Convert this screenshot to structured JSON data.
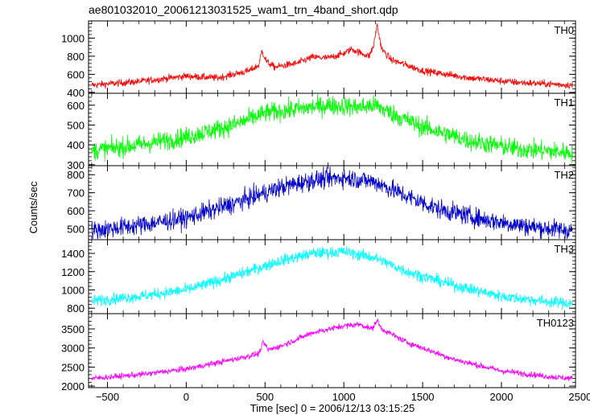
{
  "chart_data": {
    "type": "line",
    "title": "ae801032010_20061213031525_wam1_trn_4band_short.qdp",
    "xlabel": "Time [sec] 0 = 2006/12/13 03:15:25",
    "ylabel": "Counts/sec",
    "xlim": [
      -620,
      2470
    ],
    "x_ticks": [
      -500,
      0,
      500,
      1000,
      1500,
      2000,
      2500
    ],
    "x_tick_labels": [
      "−500",
      "0",
      "500",
      "1000",
      "1500",
      "2000",
      "2500"
    ],
    "grid": false,
    "panels": [
      {
        "name": "TH0",
        "color": "#ff0000",
        "ylim": [
          390,
          1190
        ],
        "y_ticks": [
          400,
          600,
          800,
          1000
        ],
        "y_tick_labels": [
          "400",
          "600",
          "800",
          "1000"
        ],
        "noise": 28,
        "envelope": [
          [
            -600,
            480
          ],
          [
            -300,
            520
          ],
          [
            0,
            580
          ],
          [
            200,
            560
          ],
          [
            400,
            640
          ],
          [
            460,
            700
          ],
          [
            480,
            860
          ],
          [
            510,
            740
          ],
          [
            560,
            680
          ],
          [
            700,
            720
          ],
          [
            800,
            790
          ],
          [
            900,
            780
          ],
          [
            1000,
            830
          ],
          [
            1050,
            880
          ],
          [
            1100,
            840
          ],
          [
            1160,
            800
          ],
          [
            1190,
            920
          ],
          [
            1210,
            1150
          ],
          [
            1240,
            880
          ],
          [
            1300,
            760
          ],
          [
            1500,
            640
          ],
          [
            1800,
            560
          ],
          [
            2100,
            510
          ],
          [
            2450,
            480
          ]
        ]
      },
      {
        "name": "TH1",
        "color": "#00ff00",
        "ylim": [
          295,
          660
        ],
        "y_ticks": [
          300,
          400,
          500,
          600
        ],
        "y_tick_labels": [
          "300",
          "400",
          "500",
          "600"
        ],
        "noise": 35,
        "envelope": [
          [
            -600,
            370
          ],
          [
            -300,
            400
          ],
          [
            0,
            440
          ],
          [
            300,
            500
          ],
          [
            500,
            560
          ],
          [
            700,
            580
          ],
          [
            900,
            600
          ],
          [
            1100,
            590
          ],
          [
            1200,
            600
          ],
          [
            1300,
            560
          ],
          [
            1500,
            490
          ],
          [
            1800,
            420
          ],
          [
            2100,
            380
          ],
          [
            2450,
            360
          ]
        ]
      },
      {
        "name": "TH2",
        "color": "#0000cc",
        "ylim": [
          440,
          850
        ],
        "y_ticks": [
          500,
          600,
          700,
          800
        ],
        "y_tick_labels": [
          "500",
          "600",
          "700",
          "800"
        ],
        "noise": 38,
        "envelope": [
          [
            -600,
            490
          ],
          [
            -300,
            520
          ],
          [
            0,
            560
          ],
          [
            300,
            640
          ],
          [
            600,
            730
          ],
          [
            800,
            770
          ],
          [
            1000,
            785
          ],
          [
            1200,
            760
          ],
          [
            1400,
            680
          ],
          [
            1600,
            610
          ],
          [
            1900,
            550
          ],
          [
            2200,
            510
          ],
          [
            2450,
            490
          ]
        ]
      },
      {
        "name": "TH3",
        "color": "#00ffff",
        "ylim": [
          740,
          1550
        ],
        "y_ticks": [
          800,
          1000,
          1200,
          1400
        ],
        "y_tick_labels": [
          "800",
          "1000",
          "1200",
          "1400"
        ],
        "noise": 45,
        "envelope": [
          [
            -600,
            880
          ],
          [
            -300,
            930
          ],
          [
            0,
            1000
          ],
          [
            300,
            1150
          ],
          [
            600,
            1320
          ],
          [
            800,
            1400
          ],
          [
            1000,
            1420
          ],
          [
            1200,
            1350
          ],
          [
            1400,
            1200
          ],
          [
            1700,
            1050
          ],
          [
            2000,
            930
          ],
          [
            2300,
            870
          ],
          [
            2450,
            850
          ]
        ]
      },
      {
        "name": "TH0123",
        "color": "#ff00ff",
        "ylim": [
          1960,
          3900
        ],
        "y_ticks": [
          2000,
          2500,
          3000,
          3500
        ],
        "y_tick_labels": [
          "2000",
          "2500",
          "3000",
          "3500"
        ],
        "noise": 55,
        "envelope": [
          [
            -600,
            2200
          ],
          [
            -300,
            2300
          ],
          [
            0,
            2450
          ],
          [
            300,
            2700
          ],
          [
            460,
            2850
          ],
          [
            490,
            3150
          ],
          [
            520,
            2950
          ],
          [
            600,
            3050
          ],
          [
            800,
            3400
          ],
          [
            1000,
            3580
          ],
          [
            1100,
            3620
          ],
          [
            1180,
            3500
          ],
          [
            1210,
            3730
          ],
          [
            1240,
            3500
          ],
          [
            1400,
            3150
          ],
          [
            1700,
            2700
          ],
          [
            2000,
            2400
          ],
          [
            2300,
            2250
          ],
          [
            2450,
            2200
          ]
        ]
      }
    ]
  }
}
